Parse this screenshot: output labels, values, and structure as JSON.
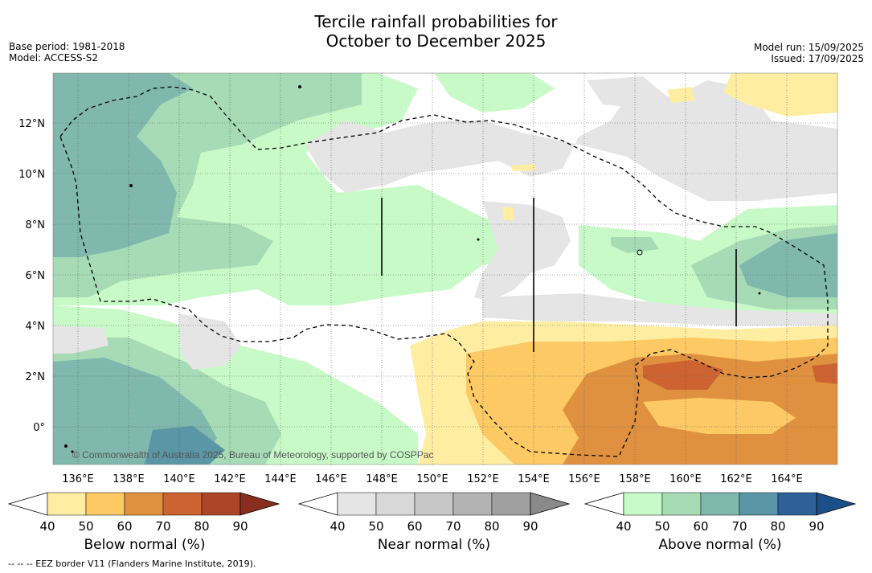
{
  "title": {
    "line1": "Tercile rainfall probabilities for",
    "line2": "October to December 2025"
  },
  "meta": {
    "base_period": "Base period: 1981-2018",
    "model": "Model: ACCESS-S2",
    "model_run": "Model run: 15/09/2025",
    "issued": "Issued: 17/09/2025"
  },
  "map": {
    "lat_labels": [
      "12°N",
      "10°N",
      "8°N",
      "6°N",
      "4°N",
      "2°N",
      "0°"
    ],
    "lon_labels": [
      "136°E",
      "138°E",
      "140°E",
      "142°E",
      "144°E",
      "146°E",
      "148°E",
      "150°E",
      "152°E",
      "154°E",
      "156°E",
      "158°E",
      "160°E",
      "162°E",
      "164°E"
    ],
    "copyright": "© Commonwealth of Australia 2025, Bureau of Meteorology, supported by COSPPac"
  },
  "colorbars": [
    {
      "label": "Below normal (%)",
      "ticks": [
        "40",
        "50",
        "60",
        "70",
        "80",
        "90"
      ],
      "colors": [
        "#ffeea2",
        "#fcc964",
        "#e0913f",
        "#cc6331",
        "#ab4627"
      ],
      "over_color": "#8a2c1e"
    },
    {
      "label": "Near normal (%)",
      "ticks": [
        "40",
        "50",
        "60",
        "70",
        "80",
        "90"
      ],
      "colors": [
        "#e5e5e5",
        "#d8d8d8",
        "#c7c7c7",
        "#b3b3b3",
        "#a0a0a0"
      ],
      "over_color": "#8a8a8a"
    },
    {
      "label": "Above normal (%)",
      "ticks": [
        "40",
        "50",
        "60",
        "70",
        "80",
        "90"
      ],
      "colors": [
        "#c8fac8",
        "#a6dbb6",
        "#80b8ae",
        "#5a96a5",
        "#2f6199"
      ],
      "over_color": "#1a4f8a"
    }
  ],
  "footnote": "-- -- -- EEZ border V11 (Flanders Marine Institute, 2019)."
}
